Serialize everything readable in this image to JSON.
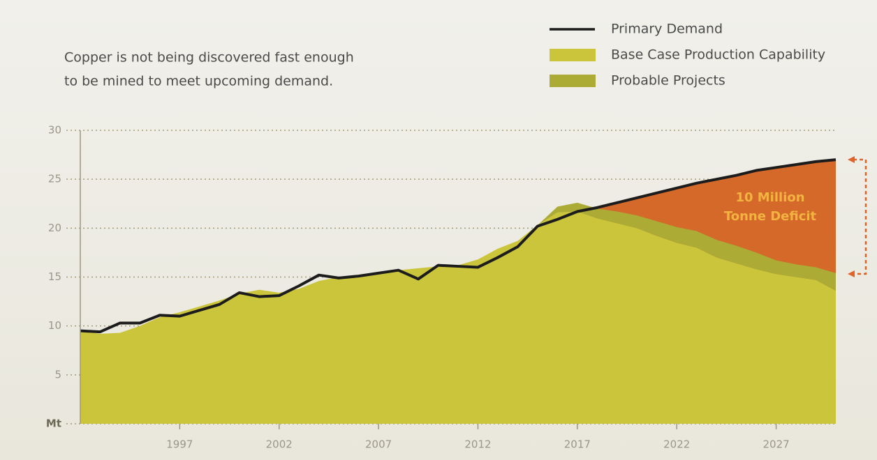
{
  "chart_data": {
    "type": "area",
    "text_lines": [
      "Copper is not being discovered fast enough",
      "to be mined to meet upcoming demand."
    ],
    "annotation_lines": [
      "10 Million",
      "Tonne Deficit"
    ],
    "x": [
      1992,
      1993,
      1994,
      1995,
      1996,
      1997,
      1998,
      1999,
      2000,
      2001,
      2002,
      2003,
      2004,
      2005,
      2006,
      2007,
      2008,
      2009,
      2010,
      2011,
      2012,
      2013,
      2014,
      2015,
      2016,
      2017,
      2018,
      2019,
      2020,
      2021,
      2022,
      2023,
      2024,
      2025,
      2026,
      2027,
      2028,
      2029,
      2030
    ],
    "series": [
      {
        "name": "Primary Demand",
        "type": "line",
        "color": "#1c1c1c",
        "values": [
          9.5,
          9.4,
          10.3,
          10.3,
          11.1,
          11.0,
          11.6,
          12.2,
          13.4,
          13.0,
          13.1,
          14.1,
          15.2,
          14.9,
          15.1,
          15.4,
          15.7,
          14.8,
          16.2,
          16.1,
          16.0,
          17.0,
          18.1,
          20.2,
          20.9,
          21.7,
          22.1,
          22.6,
          23.1,
          23.6,
          24.1,
          24.6,
          25.0,
          25.4,
          25.9,
          26.2,
          26.5,
          26.8,
          27.0
        ]
      },
      {
        "name": "Base Case Production Capability",
        "type": "area",
        "color": "#cbc53c",
        "values": [
          9.5,
          9.2,
          9.3,
          10.0,
          10.9,
          11.4,
          12.0,
          12.6,
          13.3,
          13.7,
          13.4,
          13.8,
          14.6,
          15.0,
          15.2,
          15.5,
          15.7,
          15.9,
          16.1,
          16.2,
          16.8,
          17.9,
          18.7,
          20.3,
          21.6,
          21.7,
          21.0,
          20.5,
          20.0,
          19.2,
          18.5,
          18.0,
          17.0,
          16.4,
          15.8,
          15.3,
          15.0,
          14.7,
          13.6
        ]
      },
      {
        "name": "Probable Projects",
        "type": "area",
        "color": "#abab35",
        "values": [
          0,
          0,
          0,
          0,
          0,
          0,
          0,
          0,
          0,
          0,
          0,
          0,
          0,
          0,
          0,
          0,
          0,
          0,
          0,
          0,
          0,
          0,
          0,
          0,
          0.6,
          0.9,
          1.0,
          1.2,
          1.3,
          1.5,
          1.6,
          1.7,
          1.8,
          1.8,
          1.7,
          1.4,
          1.3,
          1.3,
          1.8
        ]
      }
    ],
    "deficit_color": "#d4692a",
    "xlim": [
      1992,
      2030
    ],
    "xticks": [
      1997,
      2002,
      2007,
      2012,
      2017,
      2022,
      2027
    ],
    "ylim": [
      0,
      30
    ],
    "yticks": [
      {
        "value": 0,
        "label": "Mt"
      },
      5,
      10,
      15,
      20,
      25,
      30
    ],
    "grid": true
  }
}
